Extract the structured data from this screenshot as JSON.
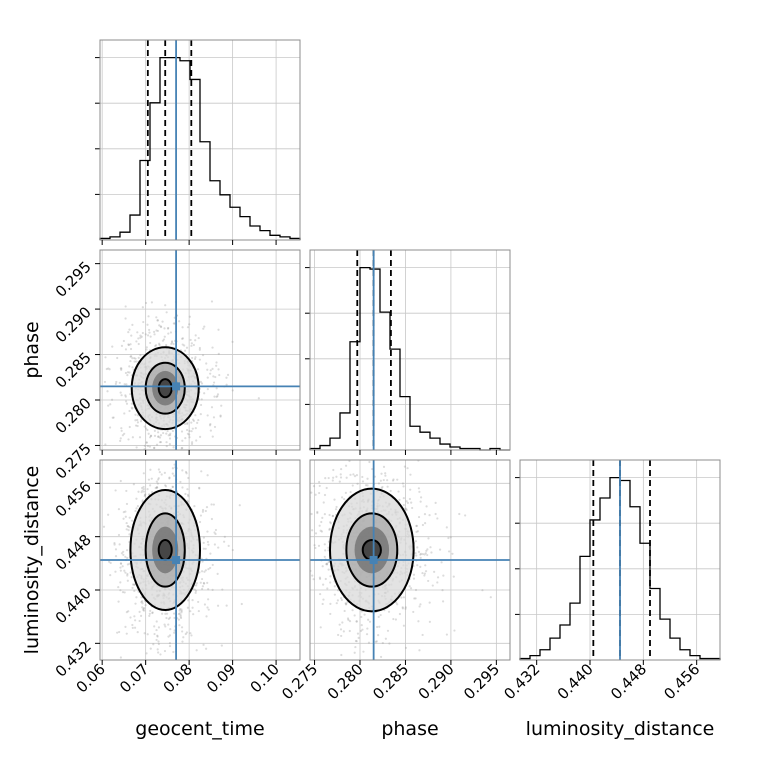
{
  "chart_data": {
    "type": "corner",
    "truth_color": "#4682b4",
    "params": [
      {
        "name": "geocent_time",
        "label": "geocent_time",
        "range": [
          0.0595,
          0.1055
        ],
        "ticks": [
          "0.06",
          "0.07",
          "0.08",
          "0.09",
          "0.10"
        ],
        "truth": 0.077,
        "quantiles": [
          0.0705,
          0.0745,
          0.0805
        ],
        "hist_edges_start": 0.0595,
        "hist_edges_step": 0.0023,
        "hist_counts": [
          1,
          2,
          5,
          16,
          51,
          88,
          117,
          117,
          115,
          103,
          63,
          38,
          29,
          21,
          15,
          9,
          6,
          3,
          2,
          1
        ]
      },
      {
        "name": "phase",
        "label": "phase",
        "range": [
          0.2745,
          0.2965
        ],
        "ticks": [
          "0.275",
          "0.280",
          "0.285",
          "0.290",
          "0.295"
        ],
        "truth": 0.2815,
        "quantiles": [
          0.2797,
          0.2815,
          0.2834
        ],
        "hist_edges_start": 0.2745,
        "hist_edges_step": 0.0011,
        "hist_counts": [
          1,
          3,
          8,
          25,
          73,
          123,
          122,
          93,
          68,
          36,
          16,
          12,
          8,
          4,
          2,
          1,
          1,
          0,
          1,
          0
        ]
      },
      {
        "name": "luminosity_distance",
        "label": "luminosity_distance",
        "range": [
          0.4295,
          0.4595
        ],
        "ticks": [
          "0.432",
          "0.440",
          "0.448",
          "0.456"
        ],
        "truth": 0.4445,
        "quantiles": [
          0.4405,
          0.4445,
          0.449
        ],
        "hist_edges_start": 0.4295,
        "hist_edges_step": 0.0015,
        "hist_counts": [
          1,
          3,
          7,
          15,
          24,
          39,
          71,
          96,
          111,
          125,
          123,
          105,
          80,
          49,
          28,
          15,
          7,
          3,
          1,
          1
        ]
      }
    ],
    "pairs": [
      {
        "x": "geocent_time",
        "y": "phase",
        "center": [
          0.0745,
          0.2813
        ],
        "contour_radii": [
          [
            0.0015,
            0.001
          ],
          [
            0.0045,
            0.0028
          ],
          [
            0.0077,
            0.0045
          ]
        ]
      },
      {
        "x": "geocent_time",
        "y": "luminosity_distance",
        "center": [
          0.0745,
          0.446
        ],
        "contour_radii": [
          [
            0.0015,
            0.0015
          ],
          [
            0.0045,
            0.0055
          ],
          [
            0.008,
            0.009
          ]
        ]
      },
      {
        "x": "phase",
        "y": "luminosity_distance",
        "center": [
          0.2813,
          0.446
        ],
        "contour_radii": [
          [
            0.001,
            0.0015
          ],
          [
            0.0028,
            0.0055
          ],
          [
            0.0046,
            0.0092
          ]
        ]
      }
    ]
  }
}
